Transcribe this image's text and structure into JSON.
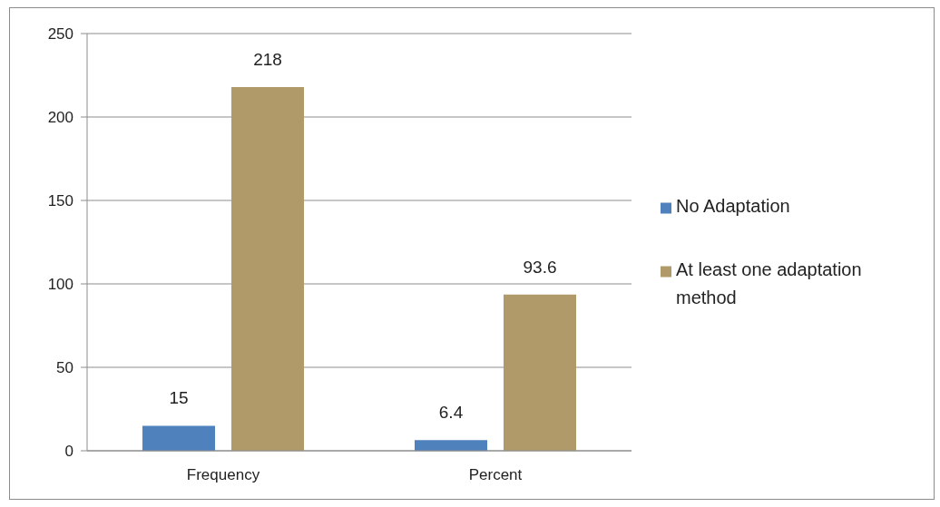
{
  "chart_data": {
    "type": "bar",
    "categories": [
      "Frequency",
      "Percent"
    ],
    "series": [
      {
        "name": "No Adaptation",
        "color": "#4f81bd",
        "values": [
          15,
          6.4
        ]
      },
      {
        "name": "At least one adaptation method",
        "color": "#b09a6a",
        "values": [
          218,
          93.6
        ]
      }
    ],
    "ylim": [
      0,
      250
    ],
    "yticks": [
      0,
      50,
      100,
      150,
      200,
      250
    ],
    "grid": "y",
    "legend": "right",
    "data_labels": true
  }
}
